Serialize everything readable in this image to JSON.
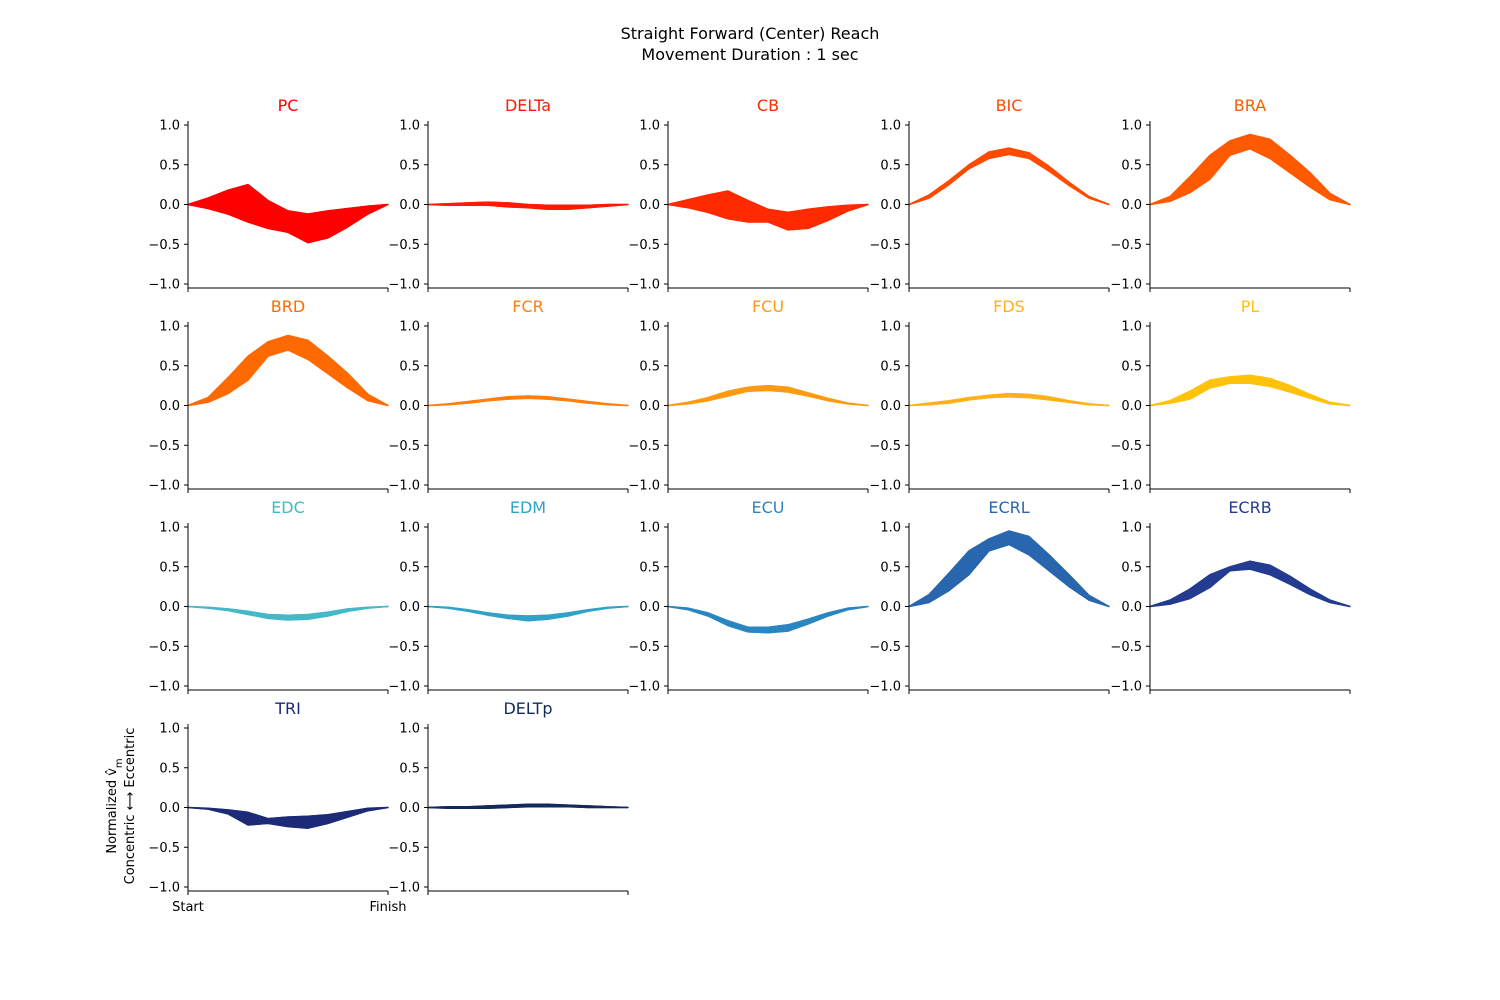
{
  "figure": {
    "title_line1": "Straight Forward (Center) Reach",
    "title_line2": "Movement Duration : 1 sec",
    "ylabel_line1": "Normalized v̂",
    "ylabel_subscript": "m",
    "ylabel_line2": "Concentric ⟷ Eccentric",
    "x_start_label": "Start",
    "x_finish_label": "Finish"
  },
  "chart_data": {
    "type": "line",
    "ylim": [
      -1.0,
      1.0
    ],
    "yticks": [
      1.0,
      0.5,
      0.0,
      -0.5,
      -1.0
    ],
    "ytick_labels": [
      "1.0",
      "0.5",
      "0.0",
      "−0.5",
      "−1.0"
    ],
    "x": [
      0,
      0.1,
      0.2,
      0.3,
      0.4,
      0.5,
      0.6,
      0.7,
      0.8,
      0.9,
      1.0
    ],
    "grid": false,
    "panels": [
      {
        "name": "PC",
        "color": "#ff0000",
        "upper": [
          0,
          0.08,
          0.18,
          0.25,
          0.05,
          -0.08,
          -0.12,
          -0.08,
          -0.05,
          -0.02,
          0
        ],
        "lower": [
          0,
          -0.05,
          -0.12,
          -0.22,
          -0.3,
          -0.35,
          -0.48,
          -0.42,
          -0.28,
          -0.12,
          0
        ]
      },
      {
        "name": "DELTa",
        "color": "#ff1a00",
        "upper": [
          0,
          0.01,
          0.02,
          0.03,
          0.02,
          0.0,
          -0.01,
          -0.01,
          -0.01,
          0.0,
          0
        ],
        "lower": [
          0,
          -0.01,
          -0.01,
          -0.01,
          -0.03,
          -0.04,
          -0.06,
          -0.06,
          -0.04,
          -0.02,
          0
        ]
      },
      {
        "name": "CB",
        "color": "#ff2a00",
        "upper": [
          0,
          0.06,
          0.12,
          0.17,
          0.05,
          -0.06,
          -0.1,
          -0.06,
          -0.03,
          -0.01,
          0
        ],
        "lower": [
          0,
          -0.04,
          -0.1,
          -0.18,
          -0.22,
          -0.22,
          -0.32,
          -0.3,
          -0.2,
          -0.08,
          0
        ]
      },
      {
        "name": "BIC",
        "color": "#ff4a00",
        "upper": [
          0,
          0.12,
          0.3,
          0.5,
          0.66,
          0.71,
          0.65,
          0.48,
          0.28,
          0.1,
          0
        ],
        "lower": [
          0,
          0.08,
          0.25,
          0.45,
          0.58,
          0.63,
          0.58,
          0.42,
          0.24,
          0.08,
          0
        ]
      },
      {
        "name": "BRA",
        "color": "#ff5a00",
        "upper": [
          0,
          0.1,
          0.35,
          0.62,
          0.8,
          0.88,
          0.82,
          0.62,
          0.4,
          0.14,
          0
        ],
        "lower": [
          0,
          0.04,
          0.15,
          0.32,
          0.62,
          0.7,
          0.58,
          0.4,
          0.22,
          0.06,
          0
        ]
      },
      {
        "name": "BRD",
        "color": "#ff6a00",
        "upper": [
          0,
          0.1,
          0.35,
          0.62,
          0.8,
          0.88,
          0.82,
          0.62,
          0.4,
          0.14,
          0
        ],
        "lower": [
          0,
          0.04,
          0.15,
          0.32,
          0.62,
          0.7,
          0.58,
          0.4,
          0.22,
          0.06,
          0
        ]
      },
      {
        "name": "FCR",
        "color": "#ff7f0e",
        "upper": [
          0,
          0.02,
          0.05,
          0.08,
          0.11,
          0.12,
          0.11,
          0.08,
          0.05,
          0.02,
          0
        ],
        "lower": [
          0,
          0.01,
          0.03,
          0.06,
          0.08,
          0.09,
          0.08,
          0.06,
          0.03,
          0.01,
          0
        ]
      },
      {
        "name": "FCU",
        "color": "#ff9a10",
        "upper": [
          0,
          0.04,
          0.1,
          0.18,
          0.23,
          0.25,
          0.23,
          0.16,
          0.09,
          0.03,
          0
        ],
        "lower": [
          0,
          0.02,
          0.06,
          0.12,
          0.18,
          0.19,
          0.17,
          0.12,
          0.06,
          0.02,
          0
        ]
      },
      {
        "name": "FDS",
        "color": "#ffb01a",
        "upper": [
          0,
          0.03,
          0.06,
          0.1,
          0.13,
          0.15,
          0.14,
          0.11,
          0.06,
          0.02,
          0
        ],
        "lower": [
          0,
          0.01,
          0.03,
          0.07,
          0.1,
          0.11,
          0.1,
          0.07,
          0.04,
          0.01,
          0
        ]
      },
      {
        "name": "PL",
        "color": "#ffc20a",
        "upper": [
          0,
          0.06,
          0.18,
          0.32,
          0.36,
          0.38,
          0.34,
          0.25,
          0.14,
          0.04,
          0
        ],
        "lower": [
          0,
          0.03,
          0.08,
          0.22,
          0.28,
          0.28,
          0.24,
          0.17,
          0.09,
          0.02,
          0
        ]
      },
      {
        "name": "EDC",
        "color": "#44b8c8",
        "upper": [
          0,
          -0.01,
          -0.03,
          -0.06,
          -0.1,
          -0.11,
          -0.1,
          -0.07,
          -0.03,
          -0.01,
          0
        ],
        "lower": [
          0,
          -0.02,
          -0.05,
          -0.1,
          -0.15,
          -0.17,
          -0.16,
          -0.12,
          -0.06,
          -0.02,
          0
        ]
      },
      {
        "name": "EDM",
        "color": "#30a2c8",
        "upper": [
          0,
          -0.01,
          -0.04,
          -0.08,
          -0.11,
          -0.12,
          -0.11,
          -0.08,
          -0.04,
          -0.01,
          0
        ],
        "lower": [
          0,
          -0.02,
          -0.06,
          -0.11,
          -0.15,
          -0.18,
          -0.16,
          -0.12,
          -0.06,
          -0.02,
          0
        ]
      },
      {
        "name": "ECU",
        "color": "#2a86c0",
        "upper": [
          0,
          -0.02,
          -0.08,
          -0.18,
          -0.26,
          -0.26,
          -0.23,
          -0.16,
          -0.08,
          -0.02,
          0
        ],
        "lower": [
          0,
          -0.04,
          -0.12,
          -0.24,
          -0.32,
          -0.33,
          -0.31,
          -0.22,
          -0.12,
          -0.04,
          0
        ]
      },
      {
        "name": "ECRL",
        "color": "#2866ae",
        "upper": [
          0,
          0.15,
          0.42,
          0.7,
          0.85,
          0.95,
          0.88,
          0.65,
          0.4,
          0.14,
          0
        ],
        "lower": [
          0,
          0.05,
          0.2,
          0.4,
          0.7,
          0.78,
          0.65,
          0.45,
          0.25,
          0.08,
          0
        ]
      },
      {
        "name": "ECRB",
        "color": "#243b92",
        "upper": [
          0,
          0.08,
          0.22,
          0.4,
          0.5,
          0.57,
          0.52,
          0.38,
          0.22,
          0.08,
          0
        ],
        "lower": [
          0,
          0.03,
          0.1,
          0.24,
          0.45,
          0.47,
          0.4,
          0.28,
          0.15,
          0.05,
          0
        ]
      },
      {
        "name": "TRI",
        "color": "#1c2a78",
        "upper": [
          0,
          -0.01,
          -0.03,
          -0.06,
          -0.14,
          -0.12,
          -0.11,
          -0.09,
          -0.05,
          -0.01,
          0
        ],
        "lower": [
          0,
          -0.02,
          -0.08,
          -0.22,
          -0.2,
          -0.24,
          -0.26,
          -0.2,
          -0.12,
          -0.04,
          0
        ]
      },
      {
        "name": "DELTp",
        "color": "#122a5e",
        "upper": [
          0,
          0.01,
          0.01,
          0.02,
          0.03,
          0.04,
          0.04,
          0.03,
          0.02,
          0.01,
          0
        ],
        "lower": [
          0,
          -0.01,
          -0.01,
          -0.01,
          0.0,
          0.01,
          0.01,
          0.01,
          0.0,
          0.0,
          0
        ]
      }
    ]
  }
}
